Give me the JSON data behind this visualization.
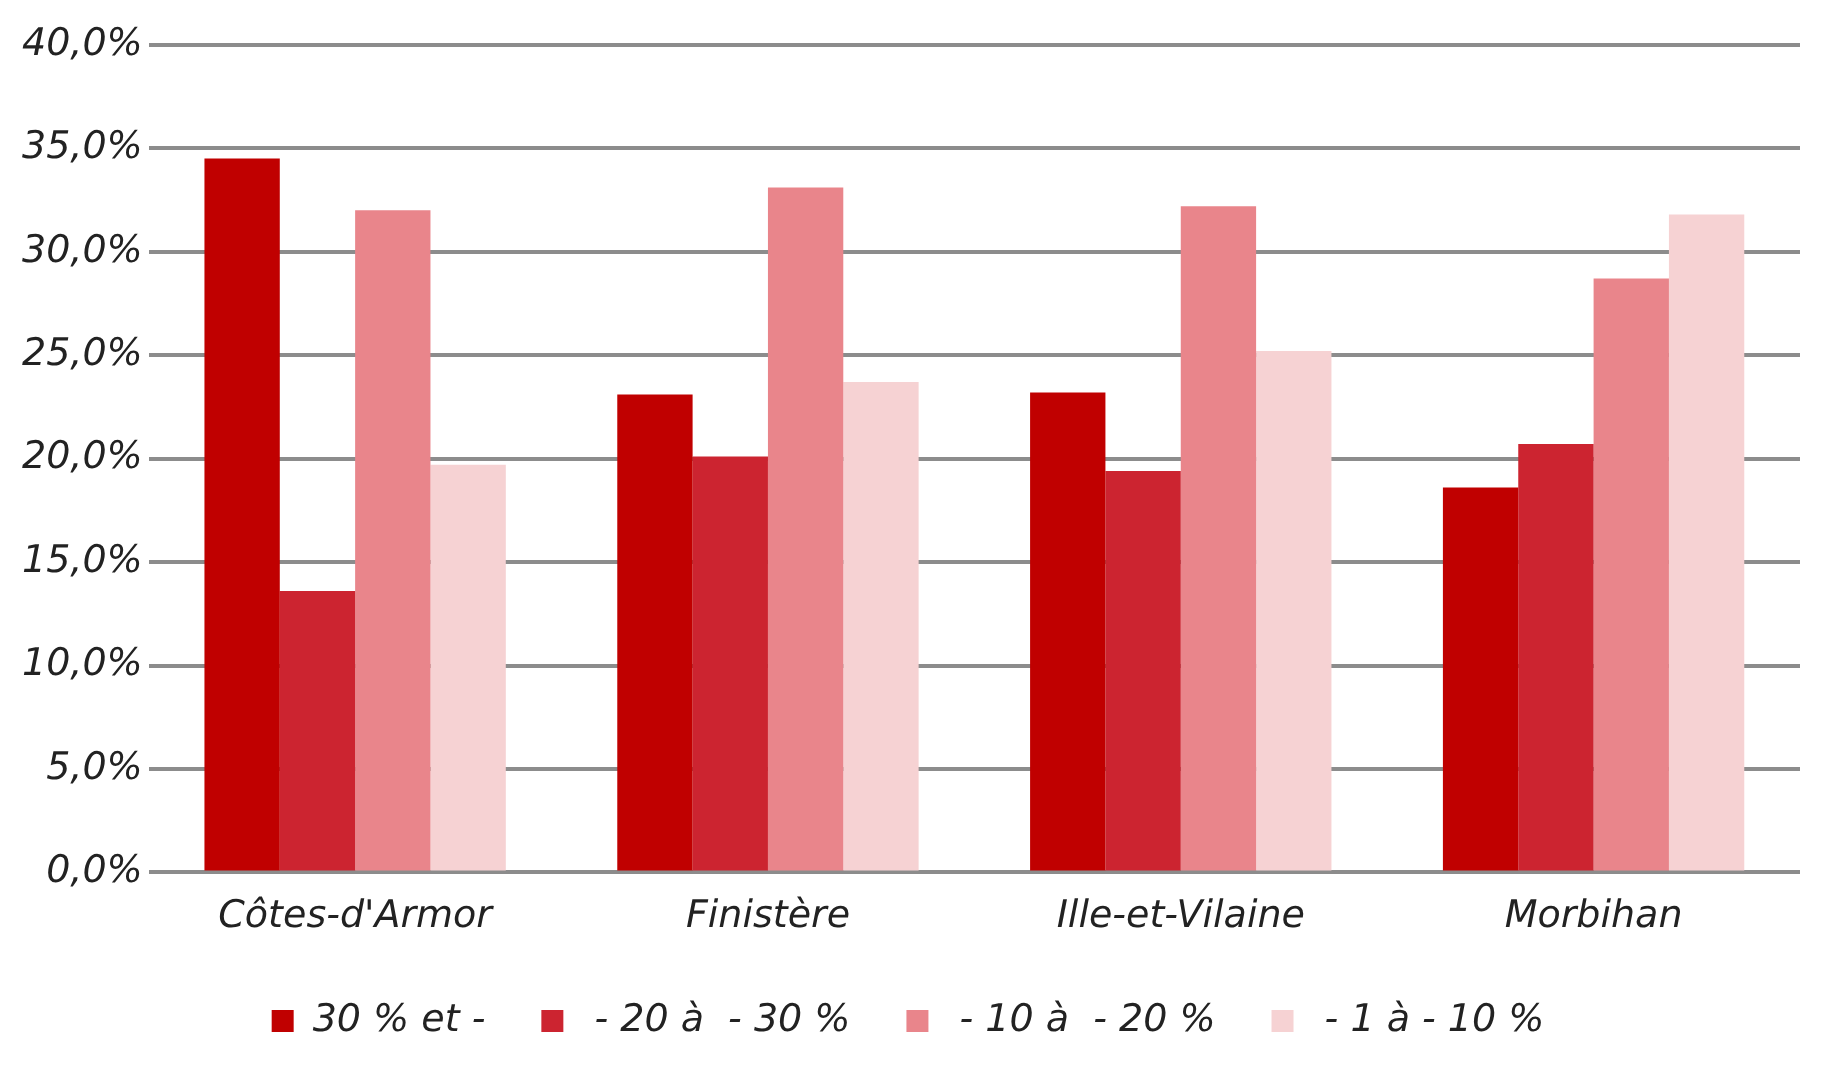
{
  "chart_data": {
    "type": "bar",
    "categories": [
      "Côtes-d'Armor",
      "Finistère",
      "Ille-et-Vilaine",
      "Morbihan"
    ],
    "series": [
      {
        "name": "30 % et -",
        "color": "#c00000",
        "values": [
          34.5,
          23.1,
          23.2,
          18.6
        ]
      },
      {
        "name": " - 20 à  - 30 %",
        "color": "#cc2430",
        "values": [
          13.6,
          20.1,
          19.4,
          20.7
        ]
      },
      {
        "name": " - 10 à  - 20 %",
        "color": "#e9858b",
        "values": [
          32.0,
          33.1,
          32.2,
          28.7
        ]
      },
      {
        "name": " - 1 à - 10 %",
        "color": "#f6d2d3",
        "values": [
          19.7,
          23.7,
          25.2,
          31.8
        ]
      }
    ],
    "ylim": [
      0,
      40
    ],
    "yticks": [
      {
        "value": 0,
        "label": "0,0%"
      },
      {
        "value": 5,
        "label": "5,0%"
      },
      {
        "value": 10,
        "label": "10,0%"
      },
      {
        "value": 15,
        "label": "15,0%"
      },
      {
        "value": 20,
        "label": "20,0%"
      },
      {
        "value": 25,
        "label": "25,0%"
      },
      {
        "value": 30,
        "label": "30,0%"
      },
      {
        "value": 35,
        "label": "35,0%"
      },
      {
        "value": 40,
        "label": "40,0%"
      }
    ],
    "grid": "y",
    "legend": "bottom"
  }
}
